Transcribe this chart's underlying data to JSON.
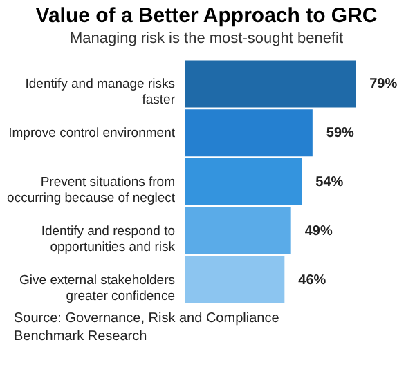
{
  "chart_data": {
    "type": "bar",
    "orientation": "horizontal",
    "title": "Value of a Better Approach to GRC",
    "subtitle": "Managing risk is the most-sought benefit",
    "categories": [
      "Identify and manage risks faster",
      "Improve control environment",
      "Prevent situations from occurring because of neglect",
      "Identify and respond to opportunities and risk",
      "Give external stakeholders greater confidence"
    ],
    "values": [
      79,
      59,
      54,
      49,
      46
    ],
    "colors": [
      "#1f6aa8",
      "#2580d0",
      "#3494de",
      "#5aabe8",
      "#8cc5f0"
    ],
    "value_labels": [
      "79%",
      "59%",
      "54%",
      "49%",
      "46%"
    ],
    "annotations": [
      "Source: Governance, Risk and Compliance Benchmark Research"
    ]
  }
}
